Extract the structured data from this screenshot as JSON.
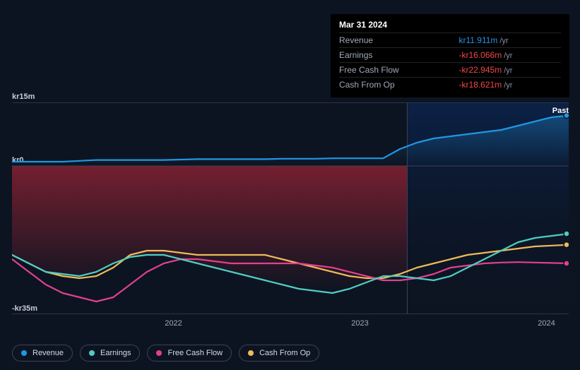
{
  "chart": {
    "type": "line",
    "background_color": "#0d1421",
    "past_label": "Past",
    "marker_line_x_ratio": 0.71,
    "yaxis": {
      "min": -35,
      "max": 15,
      "zero": 0,
      "unit_prefix": "kr",
      "unit_suffix": "m",
      "ticks": [
        {
          "value": 15,
          "label": "kr15m"
        },
        {
          "value": 0,
          "label": "kr0"
        },
        {
          "value": -35,
          "label": "-kr35m"
        }
      ],
      "label_color": "#c6ccd8",
      "label_fontsize": 11
    },
    "xaxis": {
      "ticks": [
        {
          "ratio": 0.29,
          "label": "2022"
        },
        {
          "ratio": 0.625,
          "label": "2023"
        },
        {
          "ratio": 0.96,
          "label": "2024"
        }
      ],
      "label_color": "#a0a8b8",
      "label_fontsize": 11
    },
    "gradients": {
      "left_panel": {
        "from": "rgba(0,0,0,0.18)",
        "to": "rgba(0,0,0,0)"
      },
      "right_panel": {
        "from": "rgba(10,40,90,0.75)",
        "to": "rgba(10,20,40,0)"
      },
      "revenue_fill": {
        "from": "rgba(35,150,220,0.35)",
        "to": "rgba(35,150,220,0)"
      },
      "earnings_fill": {
        "from": "rgba(200,40,60,0.55)",
        "to": "rgba(200,40,60,0)"
      }
    },
    "series": [
      {
        "key": "revenue",
        "label": "Revenue",
        "color": "#2196e3",
        "line_width": 2.2,
        "end_dot": true,
        "points_y": [
          1.0,
          1.0,
          1.0,
          1.0,
          1.2,
          1.4,
          1.4,
          1.4,
          1.4,
          1.4,
          1.5,
          1.6,
          1.6,
          1.6,
          1.6,
          1.6,
          1.7,
          1.7,
          1.7,
          1.8,
          1.8,
          1.8,
          1.8,
          4.0,
          5.5,
          6.5,
          7.0,
          7.5,
          8.0,
          8.5,
          9.5,
          10.5,
          11.5,
          11.9
        ]
      },
      {
        "key": "earnings",
        "label": "Earnings",
        "color": "#4ecdc4",
        "line_width": 2.2,
        "end_dot": true,
        "points_y": [
          -21,
          -23,
          -25,
          -25.5,
          -26,
          -25,
          -23,
          -21.5,
          -21,
          -21,
          -22,
          -23,
          -24,
          -25,
          -26,
          -27,
          -28,
          -29,
          -29.5,
          -30,
          -29,
          -27.5,
          -26,
          -26,
          -26.5,
          -27,
          -26,
          -24,
          -22,
          -20,
          -18,
          -17,
          -16.5,
          -16.0
        ]
      },
      {
        "key": "fcf",
        "label": "Free Cash Flow",
        "color": "#e2408f",
        "line_width": 2.2,
        "end_dot": true,
        "points_y": [
          -22,
          -25,
          -28,
          -30,
          -31,
          -32,
          -31,
          -28,
          -25,
          -23,
          -22,
          -22,
          -22.5,
          -23,
          -23,
          -23,
          -23,
          -23,
          -23.5,
          -24,
          -25,
          -26,
          -27,
          -27,
          -26.5,
          -25.5,
          -24,
          -23.5,
          -23,
          -22.8,
          -22.7,
          -22.8,
          -22.9,
          -23.0
        ]
      },
      {
        "key": "cfo",
        "label": "Cash From Op",
        "color": "#f0b95a",
        "line_width": 2.2,
        "end_dot": true,
        "points_y": [
          -21,
          -23,
          -25,
          -26,
          -26.5,
          -26,
          -24,
          -21,
          -20,
          -20,
          -20.5,
          -21,
          -21,
          -21,
          -21,
          -21,
          -22,
          -23,
          -24,
          -25,
          -26,
          -26.5,
          -26.5,
          -25.5,
          -24,
          -23,
          -22,
          -21,
          -20.5,
          -20,
          -19.5,
          -19,
          -18.8,
          -18.6
        ]
      }
    ]
  },
  "tooltip": {
    "title": "Mar 31 2024",
    "suffix": "/yr",
    "rows": [
      {
        "label": "Revenue",
        "value": "kr11.911m",
        "color": "#2196e3"
      },
      {
        "label": "Earnings",
        "value": "-kr16.066m",
        "color": "#ef4848"
      },
      {
        "label": "Free Cash Flow",
        "value": "-kr22.945m",
        "color": "#ef4848"
      },
      {
        "label": "Cash From Op",
        "value": "-kr18.621m",
        "color": "#ef4848"
      }
    ]
  },
  "legend": {
    "border_color": "#3a4255",
    "text_color": "#d7dbe5",
    "items": [
      {
        "key": "revenue",
        "label": "Revenue",
        "color": "#2196e3"
      },
      {
        "key": "earnings",
        "label": "Earnings",
        "color": "#4ecdc4"
      },
      {
        "key": "fcf",
        "label": "Free Cash Flow",
        "color": "#e2408f"
      },
      {
        "key": "cfo",
        "label": "Cash From Op",
        "color": "#f0b95a"
      }
    ]
  }
}
